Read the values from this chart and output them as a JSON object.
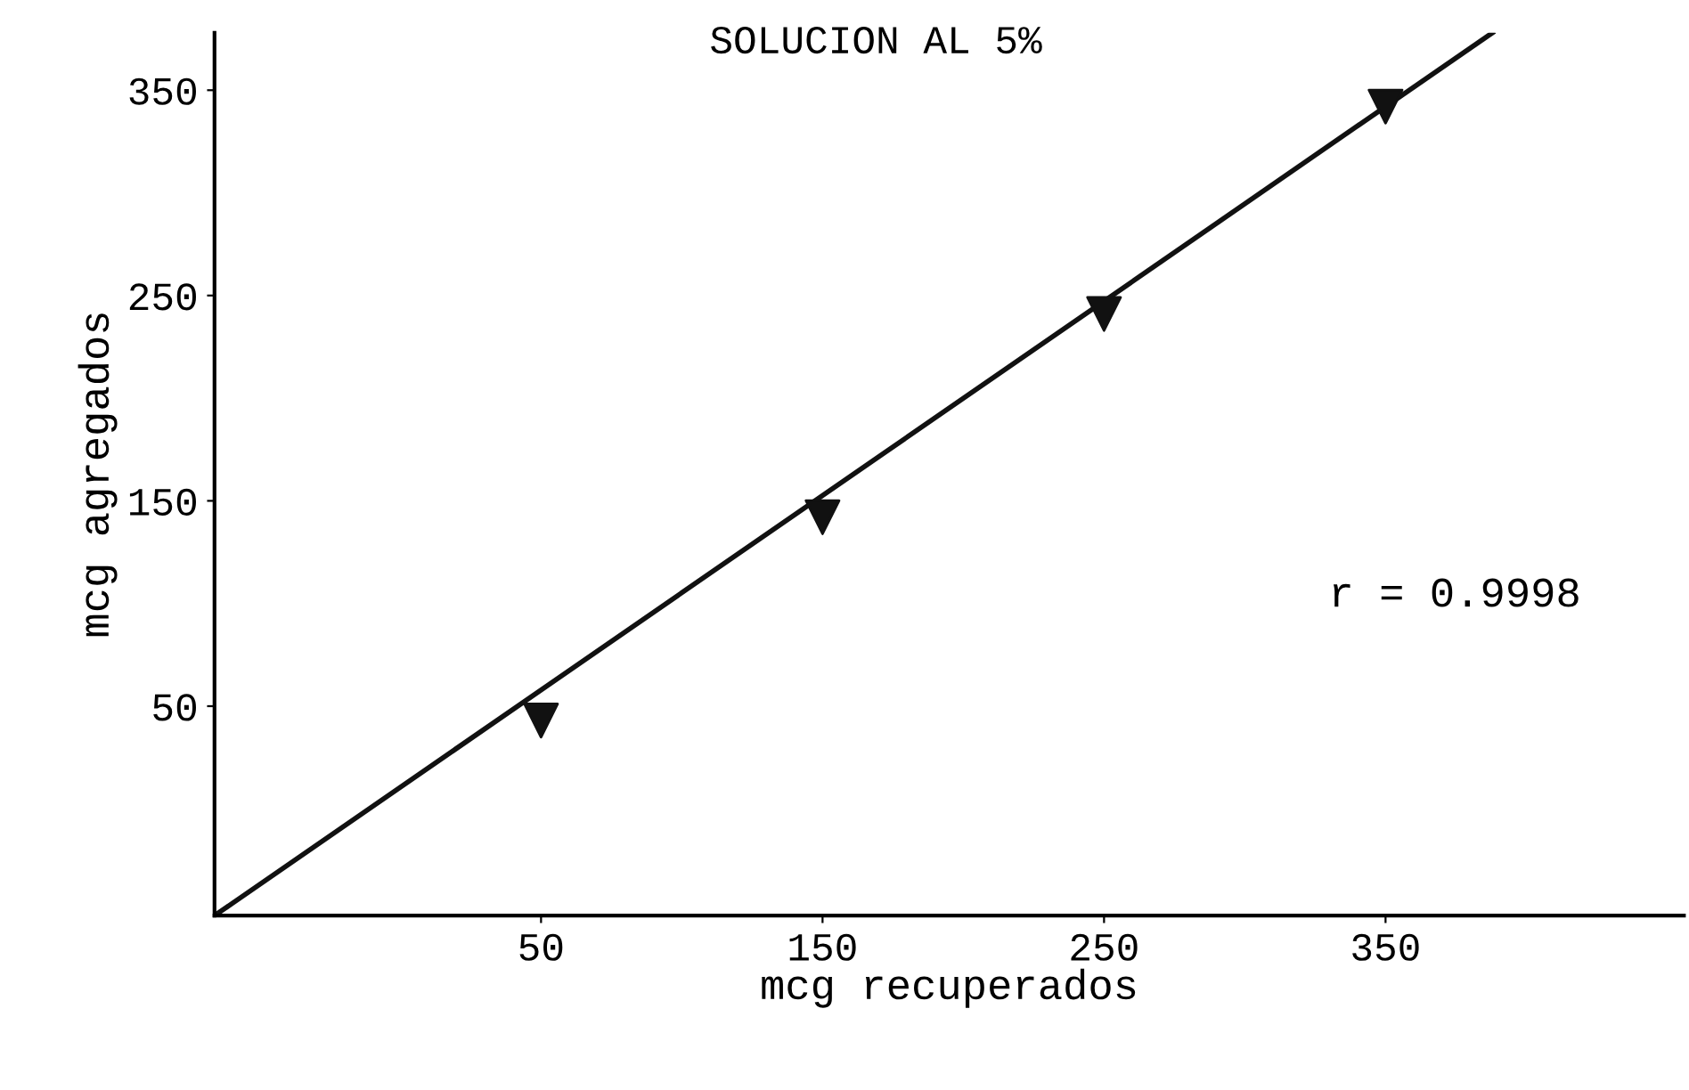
{
  "chart_data": {
    "type": "scatter",
    "title": "SOLUCION AL 5%",
    "xlabel": "mcg recuperados",
    "ylabel": "mcg agregados",
    "xlim": [
      -66,
      456
    ],
    "ylim": [
      -52,
      378
    ],
    "xticks": [
      50,
      150,
      250,
      350
    ],
    "yticks": [
      50,
      150,
      250,
      350
    ],
    "grid": false,
    "legend": false,
    "series": [
      {
        "color": "#111111",
        "marker": "triangle",
        "x": [
          50,
          150,
          250,
          350
        ],
        "values": [
          43,
          142,
          241,
          342
        ]
      },
      {
        "type": "line",
        "color": "#111111",
        "marker": "none",
        "line_style": "solid",
        "x": [
          -66,
          388
        ],
        "values": [
          -52,
          378
        ]
      }
    ],
    "annotations": [
      "r = 0.9998"
    ]
  }
}
